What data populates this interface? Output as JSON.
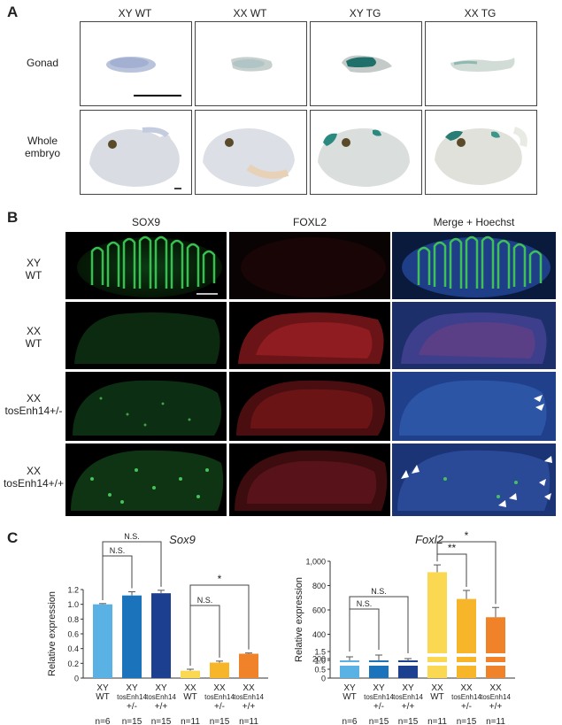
{
  "panel_a": {
    "label": "A",
    "columns": [
      "XY WT",
      "XX WT",
      "XY TG",
      "XX TG"
    ],
    "rows": [
      "Gonad",
      "Whole embryo"
    ]
  },
  "panel_b": {
    "label": "B",
    "columns": [
      "SOX9",
      "FOXL2",
      "Merge + Hoechst"
    ],
    "rows": [
      {
        "line1": "XY",
        "line2": "WT"
      },
      {
        "line1": "XX",
        "line2": "WT"
      },
      {
        "line1": "XX",
        "line2": "tosEnh14+/-"
      },
      {
        "line1": "XX",
        "line2": "tosEnh14+/+"
      }
    ]
  },
  "panel_c": {
    "label": "C"
  },
  "colors": {
    "xy_wt": "#5ab1e4",
    "xy_het": "#1b73bb",
    "xy_hom": "#1d3f8f",
    "xx_wt": "#fbd852",
    "xx_het": "#f7b52a",
    "xx_hom": "#f0832a"
  },
  "chart_data": [
    {
      "type": "bar",
      "title": "Sox9",
      "ylabel": "Relative expression",
      "ylim": [
        0,
        1.2
      ],
      "yticks": [
        "0",
        "0.2",
        "0.4",
        "0.6",
        "0.8",
        "1.0",
        "1.2"
      ],
      "categories": [
        {
          "g1": "XY",
          "g2": "WT",
          "g3": "",
          "n": "n=6"
        },
        {
          "g1": "XY",
          "g2": "tosEnh14",
          "g3": "+/-",
          "n": "n=15"
        },
        {
          "g1": "XY",
          "g2": "tosEnh14",
          "g3": "+/+",
          "n": "n=15"
        },
        {
          "g1": "XX",
          "g2": "WT",
          "g3": "",
          "n": "n=11"
        },
        {
          "g1": "XX",
          "g2": "tosEnh14",
          "g3": "+/-",
          "n": "n=15"
        },
        {
          "g1": "XX",
          "g2": "tosEnh14",
          "g3": "+/+",
          "n": "n=11"
        }
      ],
      "values": [
        1.0,
        1.12,
        1.15,
        0.1,
        0.21,
        0.33
      ],
      "errors": [
        0.01,
        0.05,
        0.04,
        0.02,
        0.02,
        0.01
      ],
      "significance": [
        {
          "from": 0,
          "to": 1,
          "label": "N.S."
        },
        {
          "from": 0,
          "to": 2,
          "label": "N.S."
        },
        {
          "from": 3,
          "to": 4,
          "label": "N.S."
        },
        {
          "from": 3,
          "to": 5,
          "label": "*"
        }
      ]
    },
    {
      "type": "bar",
      "title": "Foxl2",
      "ylabel": "Relative expression",
      "axis_break": true,
      "yticks": [
        "0",
        "0.5",
        "1.0",
        "1.5",
        "200",
        "400",
        "600",
        "800",
        "1,000"
      ],
      "categories": [
        {
          "g1": "XY",
          "g2": "WT",
          "g3": "",
          "n": "n=6"
        },
        {
          "g1": "XY",
          "g2": "tosEnh14",
          "g3": "+/-",
          "n": "n=15"
        },
        {
          "g1": "XY",
          "g2": "tosEnh14",
          "g3": "+/+",
          "n": "n=15"
        },
        {
          "g1": "XX",
          "g2": "WT",
          "g3": "",
          "n": "n=11"
        },
        {
          "g1": "XX",
          "g2": "tosEnh14",
          "g3": "+/-",
          "n": "n=15"
        },
        {
          "g1": "XX",
          "g2": "tosEnh14",
          "g3": "+/+",
          "n": "n=11"
        }
      ],
      "values": [
        1.0,
        1.0,
        1.0,
        910,
        690,
        540
      ],
      "errors": [
        0.2,
        0.3,
        0.1,
        60,
        70,
        80
      ],
      "significance": [
        {
          "from": 0,
          "to": 1,
          "label": "N.S."
        },
        {
          "from": 0,
          "to": 2,
          "label": "N.S."
        },
        {
          "from": 3,
          "to": 4,
          "label": "**"
        },
        {
          "from": 3,
          "to": 5,
          "label": "*"
        }
      ]
    }
  ]
}
